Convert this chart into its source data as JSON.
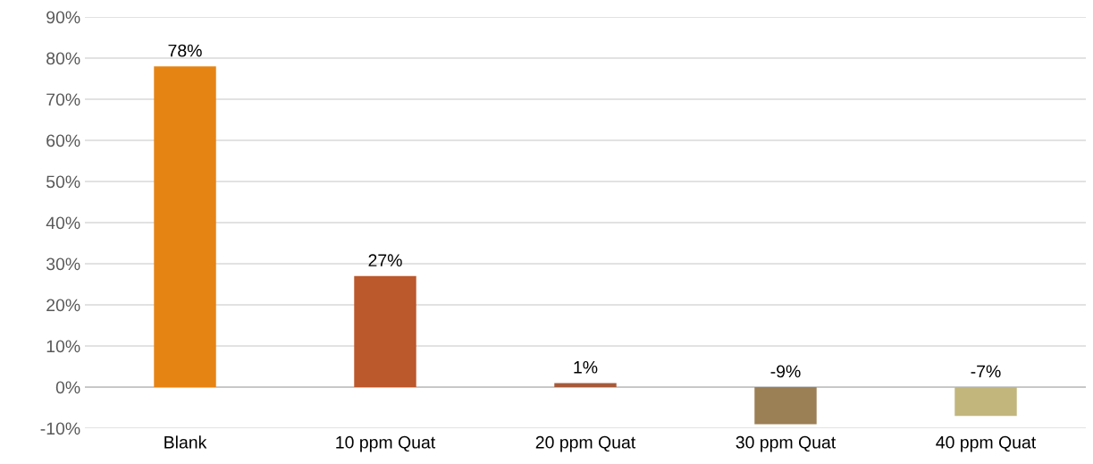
{
  "chart_data": {
    "type": "bar",
    "categories": [
      "Blank",
      "10 ppm Quat",
      "20 ppm Quat",
      "30 ppm Quat",
      "40 ppm Quat"
    ],
    "values": [
      78,
      27,
      1,
      -9,
      -7
    ],
    "colors": [
      "#e68413",
      "#bb582c",
      "#a65a3a",
      "#9b7f55",
      "#c2b67d"
    ],
    "value_labels": [
      "78%",
      "27%",
      "1%",
      "-9%",
      "-7%"
    ],
    "ylim": [
      -10,
      90
    ],
    "yticks": [
      {
        "value": -10,
        "label": "-10%"
      },
      {
        "value": 0,
        "label": "0%"
      },
      {
        "value": 10,
        "label": "10%"
      },
      {
        "value": 20,
        "label": "20%"
      },
      {
        "value": 30,
        "label": "30%"
      },
      {
        "value": 40,
        "label": "40%"
      },
      {
        "value": 50,
        "label": "50%"
      },
      {
        "value": 60,
        "label": "60%"
      },
      {
        "value": 70,
        "label": "70%"
      },
      {
        "value": 80,
        "label": "80%"
      },
      {
        "value": 90,
        "label": "90%"
      }
    ],
    "grid": "y",
    "legend": false
  }
}
